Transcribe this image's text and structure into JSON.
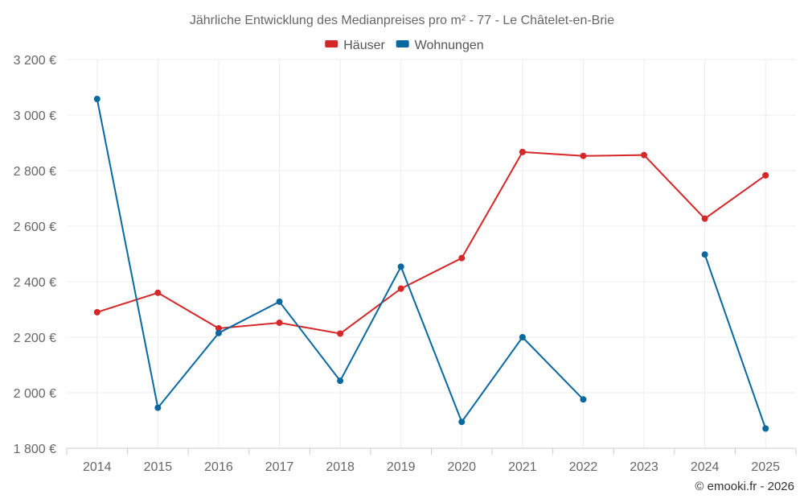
{
  "chart_data": {
    "type": "line",
    "title": "Jährliche Entwicklung des Medianpreises pro m² - 77 - Le Châtelet-en-Brie",
    "x": [
      "2014",
      "2015",
      "2016",
      "2017",
      "2018",
      "2019",
      "2020",
      "2021",
      "2022",
      "2023",
      "2024",
      "2025"
    ],
    "ylim": [
      1800,
      3200
    ],
    "yticks": [
      1800,
      2000,
      2200,
      2400,
      2600,
      2800,
      3000,
      3200
    ],
    "ytick_labels": [
      "1 800 €",
      "2 000 €",
      "2 200 €",
      "2 400 €",
      "2 600 €",
      "2 800 €",
      "3 000 €",
      "3 200 €"
    ],
    "grid": true,
    "legend_position": "top-center",
    "series": [
      {
        "name": "Häuser",
        "color": "#d62728",
        "values": [
          2290,
          2360,
          2232,
          2252,
          2213,
          2375,
          2485,
          2867,
          2853,
          2856,
          2627,
          2783
        ]
      },
      {
        "name": "Wohnungen",
        "color": "#0868a0",
        "values": [
          3058,
          1946,
          2215,
          2328,
          2043,
          2454,
          1895,
          2200,
          1976,
          null,
          2498,
          1871
        ]
      }
    ],
    "credit": "© emooki.fr - 2026"
  }
}
